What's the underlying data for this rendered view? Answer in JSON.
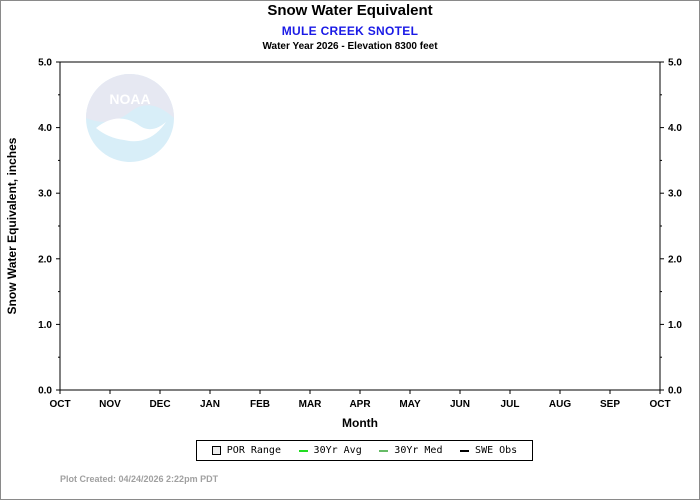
{
  "header": {
    "title": "Snow Water Equivalent",
    "station": "MULE CREEK SNOTEL",
    "subtitle": "Water Year 2026 -  Elevation 8300 feet"
  },
  "watermark": {
    "text": "NOAA"
  },
  "legend": {
    "items": [
      {
        "label": "POR Range",
        "kind": "box",
        "color": "#ececec"
      },
      {
        "label": "30Yr Avg",
        "kind": "line",
        "color": "#22dd22"
      },
      {
        "label": "30Yr Med",
        "kind": "line",
        "color": "#66bb66"
      },
      {
        "label": "SWE Obs",
        "kind": "line",
        "color": "#000000"
      }
    ]
  },
  "footer": {
    "text": "Plot Created: 04/24/2026 2:22pm PDT"
  },
  "chart_data": {
    "type": "line",
    "title": "Snow Water Equivalent",
    "xlabel": "Month",
    "ylabel": "Snow Water Equivalent, inches",
    "categories": [
      "OCT",
      "NOV",
      "DEC",
      "JAN",
      "FEB",
      "MAR",
      "APR",
      "MAY",
      "JUN",
      "JUL",
      "AUG",
      "SEP",
      "OCT"
    ],
    "yticks": [
      "0.0",
      "1.0",
      "2.0",
      "3.0",
      "4.0",
      "5.0"
    ],
    "ylim": [
      0,
      5
    ],
    "grid": false,
    "legend_position": "bottom",
    "series": []
  }
}
